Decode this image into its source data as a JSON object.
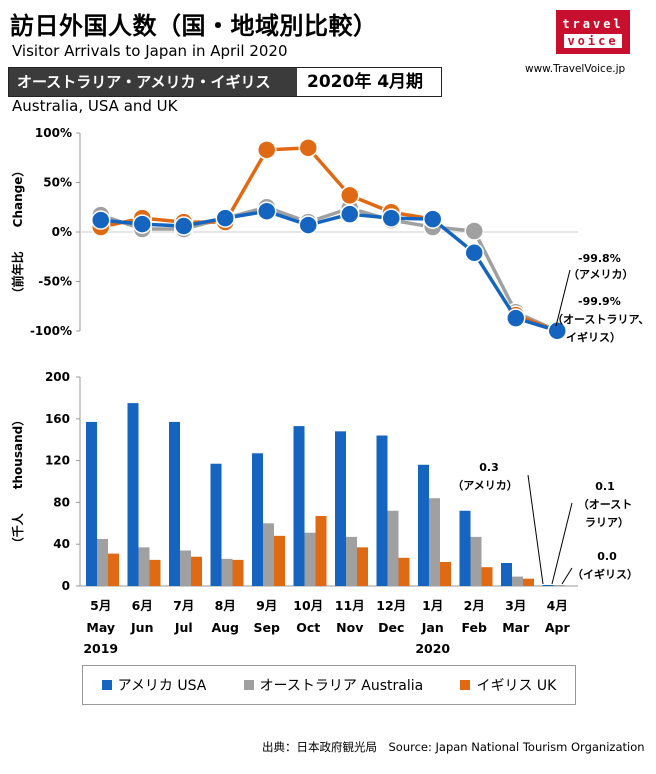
{
  "header": {
    "title": "訪日外国人数（国・地域別比較）",
    "subtitle": "Visitor Arrivals to Japan in April 2020",
    "banner_left": "オーストラリア・アメリカ・イギリス",
    "banner_right": "2020年 4月期",
    "region_en": "Australia, USA and UK",
    "logo_top": "travel",
    "logo_bottom": "voice",
    "site": "www.TravelVoice.jp"
  },
  "colors": {
    "usa": "#1565c0",
    "australia": "#a0a0a0",
    "uk": "#e06a14"
  },
  "chart_data": [
    {
      "type": "line",
      "ylabel": "（前年比　　Change）",
      "ylim": [
        -100,
        100
      ],
      "yticks": [
        "100%",
        "50%",
        "0%",
        "-50%",
        "-100%"
      ],
      "ytick_values": [
        100,
        50,
        0,
        -50,
        -100
      ],
      "categories": [
        "5月",
        "6月",
        "7月",
        "8月",
        "9月",
        "10月",
        "11月",
        "12月",
        "1月",
        "2月",
        "3月",
        "4月"
      ],
      "series": [
        {
          "name": "アメリカ USA",
          "values": [
            12,
            8,
            6,
            14,
            21,
            7,
            18,
            14,
            13,
            -21,
            -87,
            -99.8
          ]
        },
        {
          "name": "オーストラリア Australia",
          "values": [
            17,
            3,
            3,
            14,
            25,
            10,
            24,
            12,
            5,
            1,
            -81,
            -99.9
          ]
        },
        {
          "name": "イギリス UK",
          "values": [
            5,
            14,
            10,
            10,
            83,
            85,
            37,
            20,
            13,
            null,
            -84,
            -99.9
          ]
        }
      ],
      "annotations": [
        {
          "line1": "-99.8%",
          "line2": "（アメリカ）"
        },
        {
          "line1": "-99.9%",
          "line2": "（オーストラリア、",
          "line3": "イギリス）"
        }
      ]
    },
    {
      "type": "bar",
      "ylabel": "（千人　　thousand）",
      "ylim": [
        0,
        200
      ],
      "yticks": [
        "200",
        "160",
        "120",
        "80",
        "40",
        "0"
      ],
      "ytick_values": [
        200,
        160,
        120,
        80,
        40,
        0
      ],
      "categories": [
        "5月",
        "6月",
        "7月",
        "8月",
        "9月",
        "10月",
        "11月",
        "12月",
        "1月",
        "2月",
        "3月",
        "4月"
      ],
      "categories_en": [
        "May",
        "Jun",
        "Jul",
        "Aug",
        "Sep",
        "Oct",
        "Nov",
        "Dec",
        "Jan",
        "Feb",
        "Mar",
        "Apr"
      ],
      "year_labels": [
        "2019",
        "2020"
      ],
      "series": [
        {
          "name": "アメリカ USA",
          "values": [
            157,
            175,
            157,
            117,
            127,
            153,
            148,
            144,
            116,
            72,
            22,
            0.3
          ]
        },
        {
          "name": "オーストラリア Australia",
          "values": [
            45,
            37,
            34,
            26,
            60,
            51,
            47,
            72,
            84,
            47,
            9,
            0.1
          ]
        },
        {
          "name": "イギリス UK",
          "values": [
            31,
            25,
            28,
            25,
            48,
            67,
            37,
            27,
            23,
            18,
            7,
            0
          ]
        }
      ],
      "annotations": [
        {
          "line1": "0.3",
          "line2": "（アメリカ）"
        },
        {
          "line1": "0.1",
          "line2": "（オースト",
          "line3": "ラリア）"
        },
        {
          "line1": "0.0",
          "line2": "（イギリス）"
        }
      ]
    }
  ],
  "legend": [
    "アメリカ USA",
    "オーストラリア Australia",
    "イギリス UK"
  ],
  "footer": {
    "source": "出典：日本政府観光局　Source: Japan National Tourism Organization"
  }
}
